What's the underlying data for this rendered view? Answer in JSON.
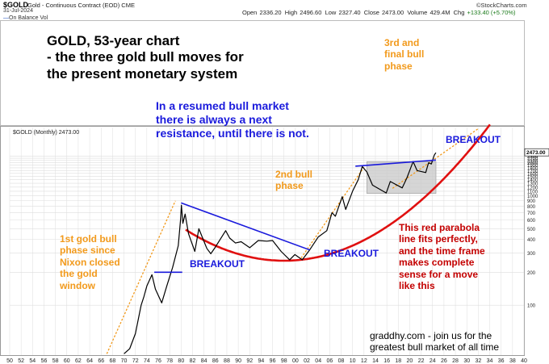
{
  "header": {
    "symbol": "$GOLD",
    "name": "Gold - Continuous Contract (EOD) CME",
    "date": "31-Jul-2024",
    "open_label": "Open",
    "open": "2336.20",
    "high_label": "High",
    "high": "2496.60",
    "low_label": "Low",
    "low": "2327.40",
    "close_label": "Close",
    "close": "2473.00",
    "volume_label": "Volume",
    "volume": "429.4M",
    "chg_label": "Chg",
    "chg": "+133.40 (+5.70%)",
    "brand": "StockCharts.com",
    "indicator": "On Balance Vol"
  },
  "panel_label": "$GOLD (Monthly) 2473.00",
  "last_price_tag": "2473.00",
  "annotations": {
    "title": "GOLD, 53-year chart\n- the three gold bull moves for\nthe present monetary system",
    "resistance_note": "In a resumed bull market\nthere is always a next\nresistance, until there is not.",
    "third_bull": "3rd and\nfinal bull\nphase",
    "second_bull": "2nd bull\nphase",
    "first_bull": "1st gold bull\nphase since\nNixon closed\nthe gold\nwindow",
    "breakout_1": "BREAKOUT",
    "breakout_2": "BREAKOUT",
    "breakout_3": "BREAKOUT",
    "parabola_note": "This red parabola\nline fits perfectly,\nand the time frame\nmakes complete\nsense for a move\nlike this",
    "footer": "graddhy.com - join us for the\ngreatest bull market of all time"
  },
  "colors": {
    "orange": "#f29a1c",
    "blue": "#1a1adc",
    "red": "#e01010",
    "dark_red": "#c40000",
    "price": "#000000",
    "grid": "#dddddd",
    "box": "#c8c8c8"
  },
  "chart_data": {
    "type": "line",
    "series_name": "$GOLD (Monthly)",
    "scale": "log",
    "ylim": [
      35,
      4200
    ],
    "xlim": [
      1950,
      2040
    ],
    "y_ticks": [
      2473,
      2300,
      2200,
      2100,
      2000,
      1900,
      1800,
      1700,
      1600,
      1500,
      1400,
      1300,
      1200,
      1100,
      1000,
      900,
      800,
      700,
      600,
      500,
      400,
      300,
      200,
      100
    ],
    "x_tick_labels": [
      "50",
      "52",
      "54",
      "56",
      "58",
      "60",
      "62",
      "64",
      "66",
      "68",
      "70",
      "72",
      "74",
      "76",
      "78",
      "80",
      "82",
      "84",
      "86",
      "88",
      "90",
      "92",
      "94",
      "96",
      "98",
      "00",
      "02",
      "04",
      "06",
      "08",
      "10",
      "12",
      "14",
      "16",
      "18",
      "20",
      "22",
      "24",
      "26",
      "28",
      "30",
      "32",
      "34",
      "36",
      "38",
      "40"
    ],
    "price": [
      [
        1970.0,
        36
      ],
      [
        1971.0,
        40
      ],
      [
        1972.0,
        55
      ],
      [
        1973.0,
        100
      ],
      [
        1973.5,
        120
      ],
      [
        1974.0,
        150
      ],
      [
        1974.9,
        190
      ],
      [
        1975.5,
        140
      ],
      [
        1976.6,
        105
      ],
      [
        1977.5,
        150
      ],
      [
        1978.5,
        220
      ],
      [
        1979.5,
        350
      ],
      [
        1979.9,
        600
      ],
      [
        1980.05,
        820
      ],
      [
        1980.3,
        560
      ],
      [
        1980.7,
        680
      ],
      [
        1981.3,
        450
      ],
      [
        1982.4,
        310
      ],
      [
        1983.1,
        500
      ],
      [
        1984.5,
        330
      ],
      [
        1985.2,
        295
      ],
      [
        1986.0,
        340
      ],
      [
        1987.8,
        480
      ],
      [
        1988.5,
        410
      ],
      [
        1989.5,
        370
      ],
      [
        1990.5,
        380
      ],
      [
        1992.0,
        335
      ],
      [
        1993.5,
        390
      ],
      [
        1995.0,
        385
      ],
      [
        1996.0,
        390
      ],
      [
        1997.5,
        310
      ],
      [
        1999.0,
        260
      ],
      [
        1999.9,
        290
      ],
      [
        2001.2,
        260
      ],
      [
        2002.5,
        320
      ],
      [
        2004.0,
        420
      ],
      [
        2005.5,
        480
      ],
      [
        2006.4,
        700
      ],
      [
        2007.0,
        650
      ],
      [
        2008.2,
        980
      ],
      [
        2008.8,
        750
      ],
      [
        2010.0,
        1100
      ],
      [
        2011.0,
        1400
      ],
      [
        2011.7,
        1850
      ],
      [
        2012.5,
        1650
      ],
      [
        2013.5,
        1250
      ],
      [
        2015.9,
        1060
      ],
      [
        2016.6,
        1350
      ],
      [
        2018.7,
        1180
      ],
      [
        2019.5,
        1450
      ],
      [
        2020.6,
        2050
      ],
      [
        2021.3,
        1700
      ],
      [
        2022.8,
        1630
      ],
      [
        2023.3,
        2000
      ],
      [
        2023.8,
        1950
      ],
      [
        2024.3,
        2350
      ],
      [
        2024.58,
        2473
      ]
    ],
    "overlays": {
      "resistance_1975": [
        [
          1975.3,
          200
        ],
        [
          1980.2,
          200
        ]
      ],
      "resistance_1980_2002": [
        [
          1980.0,
          860
        ],
        [
          2002.5,
          320
        ]
      ],
      "resistance_2011_2024": [
        [
          2010.5,
          1860
        ],
        [
          2024.6,
          2120
        ]
      ],
      "consolidation_box": {
        "x": [
          2012.5,
          2024.6
        ],
        "y": [
          1050,
          2050
        ]
      },
      "orange_trend_1": [
        [
          1967.0,
          36
        ],
        [
          1979.0,
          900
        ]
      ],
      "orange_trend_2": [
        [
          2001.0,
          270
        ],
        [
          2012.0,
          1820
        ]
      ],
      "orange_trend_3": [
        [
          2017.0,
          1170
        ],
        [
          2032.0,
          4100
        ]
      ],
      "parabola_vertex": [
        1998.0,
        255
      ]
    }
  }
}
